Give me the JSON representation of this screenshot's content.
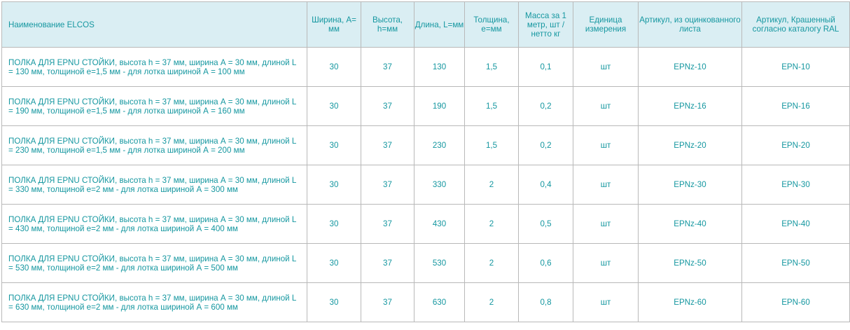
{
  "headers": {
    "name": "Наименование ELCOS",
    "width": "Ширина, А= мм",
    "height": "Высота, h=мм",
    "length": "Длина, L=мм",
    "thickness": "Толщина, е=мм",
    "mass": "Масса за 1 метр, шт / нетто кг",
    "unit": "Единица измерения",
    "art_galv": "Артикул, из оцинкованного листа",
    "art_ral": "Артикул, Крашенный согласно каталогу RAL"
  },
  "rows": [
    {
      "name": "ПОЛКА ДЛЯ EPNU СТОЙКИ, высота h = 37 мм, ширина А = 30 мм, длиной L = 130 мм, толщиной е=1,5 мм - для лотка шириной А = 100 мм",
      "width": "30",
      "height": "37",
      "length": "130",
      "thickness": "1,5",
      "mass": "0,1",
      "unit": "шт",
      "art_galv": "EPNz-10",
      "art_ral": "EPN-10"
    },
    {
      "name": "ПОЛКА ДЛЯ EPNU СТОЙКИ, высота h = 37 мм, ширина А = 30 мм, длиной L = 190 мм, толщиной е=1,5 мм - для лотка шириной А = 160 мм",
      "width": "30",
      "height": "37",
      "length": "190",
      "thickness": "1,5",
      "mass": "0,2",
      "unit": "шт",
      "art_galv": "EPNz-16",
      "art_ral": "EPN-16"
    },
    {
      "name": "ПОЛКА ДЛЯ EPNU СТОЙКИ, высота h = 37 мм, ширина А = 30 мм, длиной L = 230 мм, толщиной е=1,5 мм - для лотка шириной А = 200 мм",
      "width": "30",
      "height": "37",
      "length": "230",
      "thickness": "1,5",
      "mass": "0,2",
      "unit": "шт",
      "art_galv": "EPNz-20",
      "art_ral": "EPN-20"
    },
    {
      "name": "ПОЛКА ДЛЯ EPNU СТОЙКИ, высота h = 37 мм, ширина А = 30 мм, длиной L = 330 мм, толщиной е=2 мм - для лотка шириной А = 300 мм",
      "width": "30",
      "height": "37",
      "length": "330",
      "thickness": "2",
      "mass": "0,4",
      "unit": "шт",
      "art_galv": "EPNz-30",
      "art_ral": "EPN-30"
    },
    {
      "name": "ПОЛКА ДЛЯ EPNU СТОЙКИ, высота h = 37 мм, ширина А = 30 мм, длиной L = 430 мм, толщиной е=2 мм - для лотка шириной А = 400 мм",
      "width": "30",
      "height": "37",
      "length": "430",
      "thickness": "2",
      "mass": "0,5",
      "unit": "шт",
      "art_galv": "EPNz-40",
      "art_ral": "EPN-40"
    },
    {
      "name": "ПОЛКА ДЛЯ EPNU СТОЙКИ, высота h = 37 мм, ширина А = 30 мм, длиной L = 530 мм, толщиной е=2 мм - для лотка шириной А = 500 мм",
      "width": "30",
      "height": "37",
      "length": "530",
      "thickness": "2",
      "mass": "0,6",
      "unit": "шт",
      "art_galv": "EPNz-50",
      "art_ral": "EPN-50"
    },
    {
      "name": "ПОЛКА ДЛЯ EPNU СТОЙКИ, высота h = 37 мм, ширина А = 30 мм, длиной L = 630 мм, толщиной е=2 мм - для лотка шириной А = 600 мм",
      "width": "30",
      "height": "37",
      "length": "630",
      "thickness": "2",
      "mass": "0,8",
      "unit": "шт",
      "art_galv": "EPNz-60",
      "art_ral": "EPN-60"
    }
  ],
  "colors": {
    "text": "#1597a0",
    "header_bg": "#daeef3",
    "border": "#b9b9b9"
  }
}
